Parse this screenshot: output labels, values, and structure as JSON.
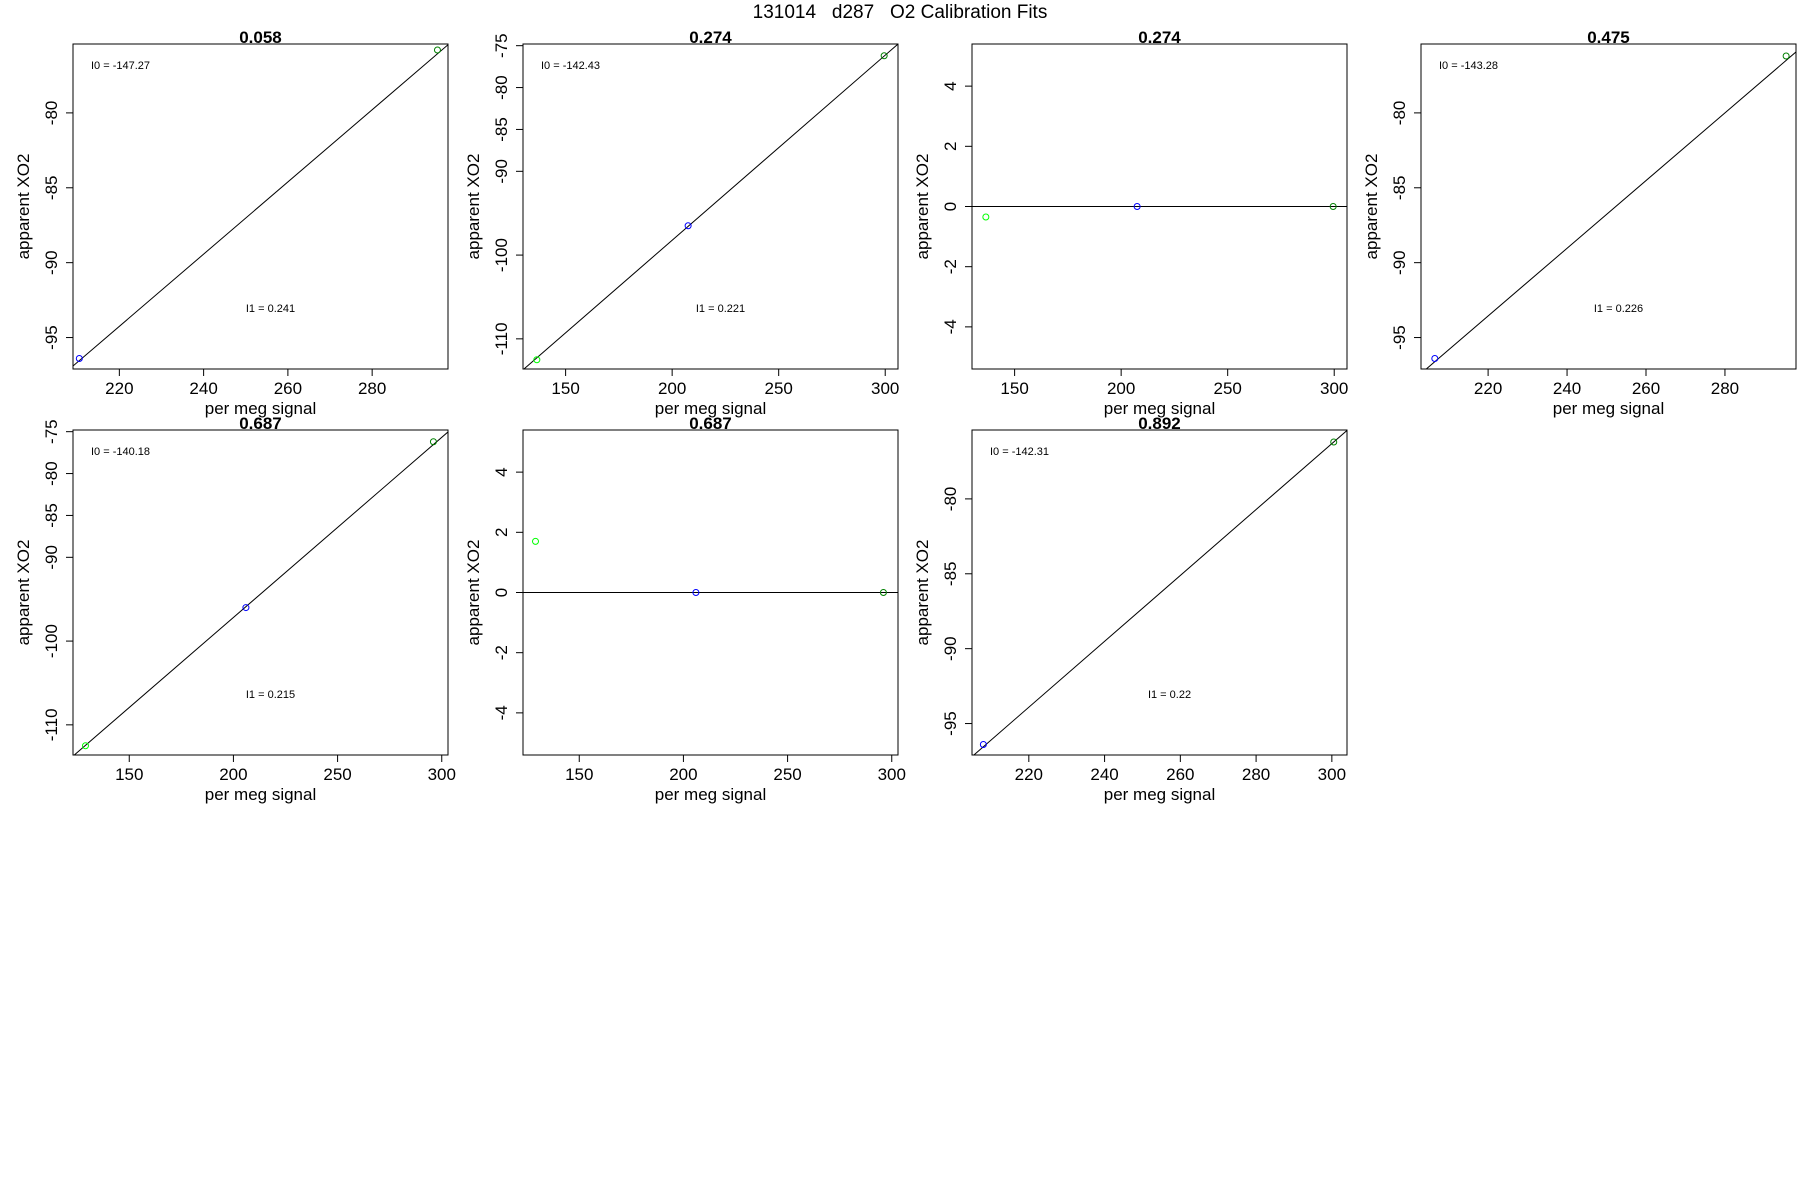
{
  "title": "131014   d287   O2 Calibration Fits",
  "chart_data": [
    {
      "type": "scatter",
      "title": "0.058",
      "xlabel": "per meg signal",
      "ylabel": "apparent XO2",
      "xlim": [
        209,
        298
      ],
      "ylim": [
        -97.1,
        -75.4
      ],
      "xticks": [
        220,
        240,
        260,
        280
      ],
      "yticks": [
        -80,
        -85,
        -90,
        -95
      ],
      "points": [
        {
          "x": 210.5,
          "y": -96.4,
          "color": "#0000ff"
        },
        {
          "x": 295.5,
          "y": -75.8,
          "color": "#008000"
        }
      ],
      "line": {
        "intercept": -147.27,
        "slope": 0.241
      },
      "annotations": [
        "I0 =  -147.27",
        "I1 =  0.241"
      ]
    },
    {
      "type": "scatter",
      "title": "0.274",
      "xlabel": "per meg signal",
      "ylabel": "apparent XO2",
      "xlim": [
        130,
        306
      ],
      "ylim": [
        -113.6,
        -74.8
      ],
      "xticks": [
        150,
        200,
        250,
        300
      ],
      "yticks": [
        -75,
        -80,
        -85,
        -90,
        -100,
        -110
      ],
      "points": [
        {
          "x": 136.5,
          "y": -112.5,
          "color": "#00ff00"
        },
        {
          "x": 207.5,
          "y": -96.5,
          "color": "#0000ff"
        },
        {
          "x": 299.5,
          "y": -76.2,
          "color": "#008000"
        }
      ],
      "line": {
        "intercept": -142.43,
        "slope": 0.221
      },
      "annotations": [
        "I0 =  -142.43",
        "I1 =  0.221"
      ]
    },
    {
      "type": "scatter",
      "title": "0.274",
      "xlabel": "per meg signal",
      "ylabel": "apparent XO2",
      "xlim": [
        130,
        306
      ],
      "ylim": [
        -5.4,
        5.4
      ],
      "xticks": [
        150,
        200,
        250,
        300
      ],
      "yticks": [
        4,
        2,
        0,
        -2,
        -4
      ],
      "points": [
        {
          "x": 136.5,
          "y": -0.35,
          "color": "#00ff00"
        },
        {
          "x": 207.5,
          "y": 0,
          "color": "#0000ff"
        },
        {
          "x": 299.5,
          "y": 0,
          "color": "#008000"
        }
      ],
      "line": {
        "intercept": 0,
        "slope": 0
      },
      "annotations": []
    },
    {
      "type": "scatter",
      "title": "0.475",
      "xlabel": "per meg signal",
      "ylabel": "apparent XO2",
      "xlim": [
        203,
        298
      ],
      "ylim": [
        -97.1,
        -75.4
      ],
      "xticks": [
        220,
        240,
        260,
        280
      ],
      "yticks": [
        -80,
        -85,
        -90,
        -95
      ],
      "points": [
        {
          "x": 206.5,
          "y": -96.4,
          "color": "#0000ff"
        },
        {
          "x": 295.5,
          "y": -76.2,
          "color": "#008000"
        }
      ],
      "line": {
        "intercept": -143.28,
        "slope": 0.226
      },
      "annotations": [
        "I0 =  -143.28",
        "I1 =  0.226"
      ]
    },
    {
      "type": "scatter",
      "title": "0.687",
      "xlabel": "per meg signal",
      "ylabel": "apparent XO2",
      "xlim": [
        123,
        303
      ],
      "ylim": [
        -113.6,
        -74.8
      ],
      "xticks": [
        150,
        200,
        250,
        300
      ],
      "yticks": [
        -75,
        -80,
        -85,
        -90,
        -100,
        -110
      ],
      "points": [
        {
          "x": 129,
          "y": -112.5,
          "color": "#00ff00"
        },
        {
          "x": 206,
          "y": -96.0,
          "color": "#0000ff"
        },
        {
          "x": 296,
          "y": -76.2,
          "color": "#008000"
        }
      ],
      "line": {
        "intercept": -140.18,
        "slope": 0.215
      },
      "annotations": [
        "I0 =  -140.18",
        "I1 =  0.215"
      ]
    },
    {
      "type": "scatter",
      "title": "0.687",
      "xlabel": "per meg signal",
      "ylabel": "apparent XO2",
      "xlim": [
        123,
        303
      ],
      "ylim": [
        -5.4,
        5.4
      ],
      "xticks": [
        150,
        200,
        250,
        300
      ],
      "yticks": [
        4,
        2,
        0,
        -2,
        -4
      ],
      "points": [
        {
          "x": 129,
          "y": 1.7,
          "color": "#00ff00"
        },
        {
          "x": 206,
          "y": 0,
          "color": "#0000ff"
        },
        {
          "x": 296,
          "y": 0,
          "color": "#008000"
        }
      ],
      "line": {
        "intercept": 0,
        "slope": 0
      },
      "annotations": []
    },
    {
      "type": "scatter",
      "title": "0.892",
      "xlabel": "per meg signal",
      "ylabel": "apparent XO2",
      "xlim": [
        205,
        304
      ],
      "ylim": [
        -97.1,
        -75.4
      ],
      "xticks": [
        220,
        240,
        260,
        280,
        300
      ],
      "yticks": [
        -80,
        -85,
        -90,
        -95
      ],
      "points": [
        {
          "x": 208,
          "y": -96.4,
          "color": "#0000ff"
        },
        {
          "x": 300.5,
          "y": -76.2,
          "color": "#008000"
        }
      ],
      "line": {
        "intercept": -142.31,
        "slope": 0.22
      },
      "annotations": [
        "I0 =  -142.31",
        "I1 =  0.22"
      ]
    }
  ]
}
